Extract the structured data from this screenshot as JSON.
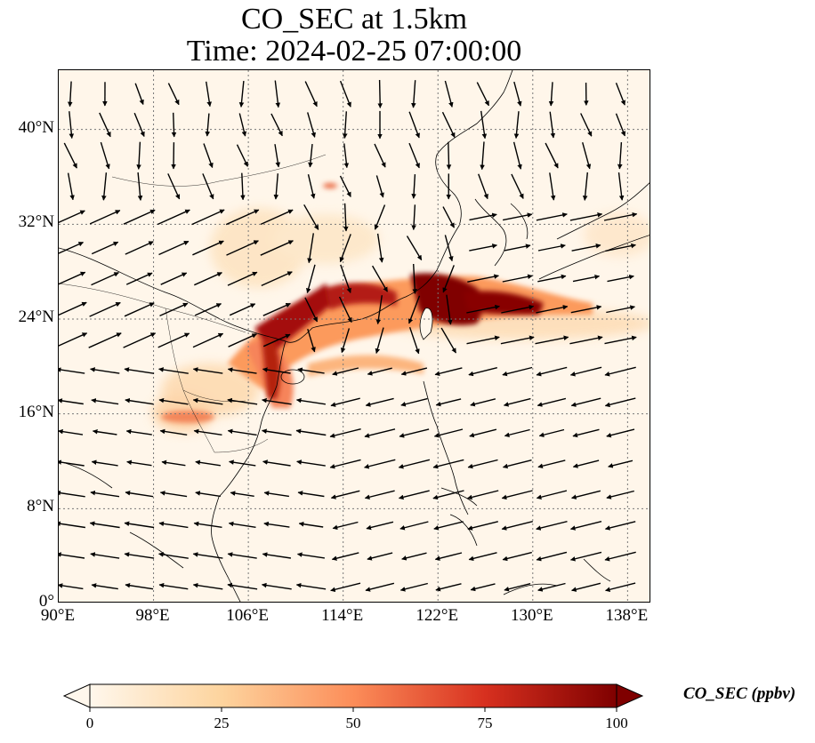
{
  "title": {
    "line1": "CO_SEC at 1.5km",
    "line2": "Time: 2024-02-25 07:00:00"
  },
  "map": {
    "projection": "PlateCarree",
    "lon_range": [
      90,
      140
    ],
    "lat_range": [
      0,
      45
    ],
    "gridlines": "dotted",
    "variable": "CO_SEC",
    "level": "1.5km",
    "lon_ticks": [
      "90°E",
      "98°E",
      "106°E",
      "114°E",
      "122°E",
      "130°E",
      "138°E"
    ],
    "lat_ticks": [
      "0°",
      "8°N",
      "16°N",
      "24°N",
      "32°N",
      "40°N"
    ],
    "overlay": "wind vectors"
  },
  "colorbar": {
    "label": "CO_SEC (ppbv)",
    "ticks": [
      "0",
      "25",
      "50",
      "75",
      "100"
    ],
    "range": [
      0,
      100
    ],
    "colormap": "OrRd",
    "extend": "both",
    "colors": [
      "#fff7ec",
      "#fdd49e",
      "#fc8d59",
      "#d7301f",
      "#7f0000"
    ]
  }
}
